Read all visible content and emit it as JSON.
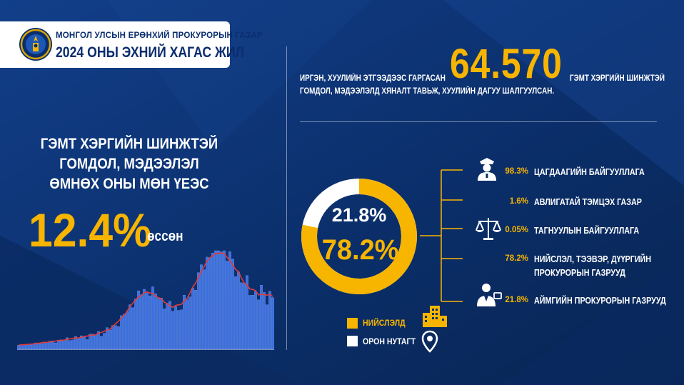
{
  "header": {
    "org_name": "МОНГОЛ УЛСЫН ЕРӨНХИЙ ПРОКУРОРЫН ГАЗАР",
    "period": "2024 ОНЫ ЭХНИЙ ХАГАС ЖИЛ",
    "emblem_icon": "state-emblem-icon"
  },
  "growth": {
    "title_lines": [
      "ГЭМТ ХЭРГИЙН ШИНЖТЭЙ",
      "ГОМДОЛ, МЭДЭЭЛЭЛ",
      "ӨМНӨХ ОНЫ МӨН ҮЕЭС"
    ],
    "value": "12.4%",
    "suffix": "өссөн"
  },
  "summary": {
    "prefix": "ИРГЭН, ХУУЛИЙН ЭТГЭЭДЭЭС ГАРГАСАН",
    "number": "64.570",
    "suffix": "ГЭМТ ХЭРГИЙН ШИНЖТЭЙ",
    "line2": "ГОМДОЛ, МЭДЭЭЛЭЛД ХЯНАЛТ ТАВЬЖ, ХУУЛИЙН ДАГУУ ШАЛГУУЛСАН."
  },
  "donut": {
    "rural_pct": "21.8%",
    "capital_pct": "78.2%",
    "capital_share": 0.782,
    "rural_share": 0.218
  },
  "legend": [
    {
      "label": "НИЙСЛЭЛД",
      "color": "#f7b500",
      "icon": "buildings-icon"
    },
    {
      "label": "ОРОН НУТАГТ",
      "color": "#ffffff",
      "icon": "location-pin-icon"
    }
  ],
  "breakdown": [
    {
      "pct": "98.3%",
      "label": "ЦАГДААГИЙН БАЙГУУЛЛАГА",
      "icon": "police-officer-icon"
    },
    {
      "pct": "1.6%",
      "label": "АВЛИГАТАЙ ТЭМЦЭХ ГАЗАР",
      "icon": ""
    },
    {
      "pct": "0.05%",
      "label": "ТАГНУУЛЫН БАЙГУУЛЛАГА",
      "icon": "scales-of-justice-icon"
    },
    {
      "pct": "78.2%",
      "label": "НИЙСЛЭЛ, ТЭЭВЭР, ДҮҮРГИЙН",
      "label2": "ПРОКУРОРЫН ГАЗРУУД",
      "icon": ""
    },
    {
      "pct": "21.8%",
      "label": "АЙМГИЙН ПРОКУРОРЫН ГАЗРУУД",
      "icon": "prosecutor-icon"
    }
  ],
  "colors": {
    "accent": "#f7b500",
    "background": "#0b2f6b",
    "bar": "#3b6fe0",
    "trend": "#e23b3b"
  }
}
